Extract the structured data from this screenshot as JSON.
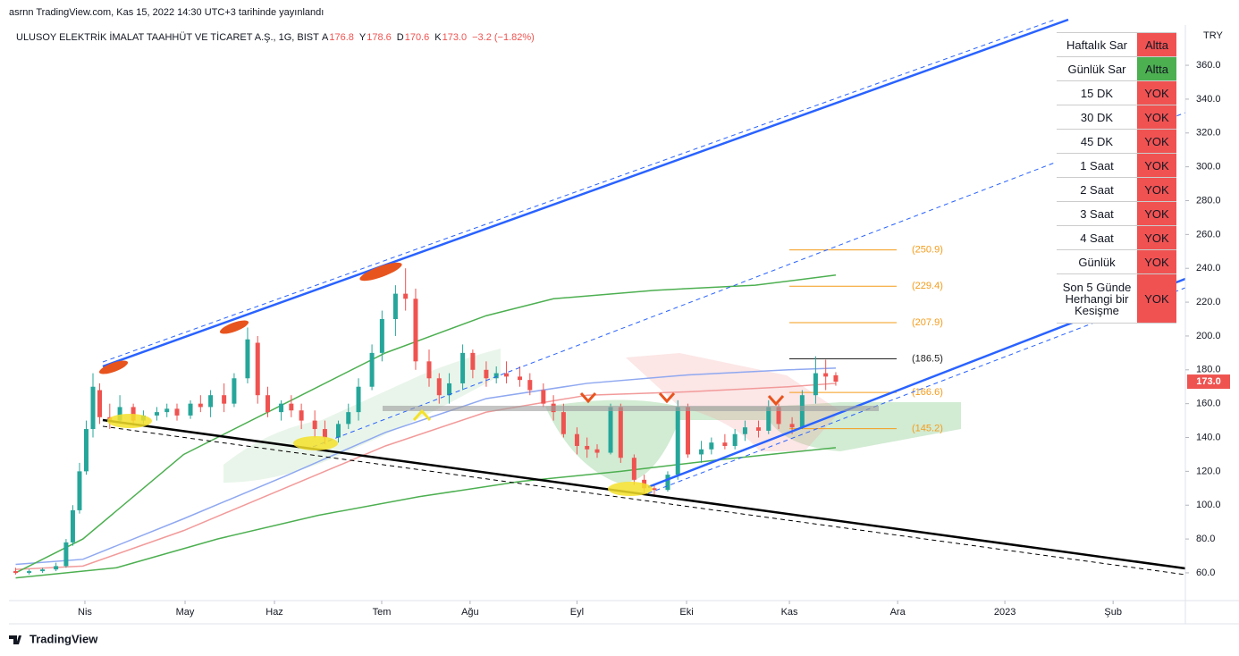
{
  "header": {
    "publisher": "asrnn TradingView.com, Kas 15, 2022 14:30 UTC+3 tarihinde yayınlandı"
  },
  "chart_data": {
    "type": "candlestick",
    "title": "ULUSOY ELEKTRİK İMALAT TAAHHÜT VE TİCARET A.Ş., 1G, BIST",
    "ohlc_legend": [
      {
        "key": "A",
        "text": "176.8"
      },
      {
        "key": "Y",
        "text": "178.6"
      },
      {
        "key": "D",
        "text": "170.6"
      },
      {
        "key": "K",
        "text": "173.0"
      },
      {
        "key": "",
        "text": "−3.2 (−1.82%)"
      }
    ],
    "currency": "TRY",
    "up_color": "#26a69a",
    "down_color": "#ef5350",
    "xlim": [
      8,
      358
    ],
    "xticks": [
      {
        "value": 30.6,
        "label": "Nis"
      },
      {
        "value": 60.4,
        "label": "May"
      },
      {
        "value": 87,
        "label": "Haz"
      },
      {
        "value": 118.9,
        "label": "Tem"
      },
      {
        "value": 145.2,
        "label": "Ağu"
      },
      {
        "value": 177,
        "label": "Eyl"
      },
      {
        "value": 209.6,
        "label": "Eki"
      },
      {
        "value": 240.2,
        "label": "Kas"
      },
      {
        "value": 272.4,
        "label": "Ara"
      },
      {
        "value": 304.3,
        "label": "2023"
      },
      {
        "value": 336.5,
        "label": "Şub"
      }
    ],
    "ylim": [
      43.6,
      383.8
    ],
    "yticks": [
      {
        "value": 60,
        "label": "60.0"
      },
      {
        "value": 80,
        "label": "80.0"
      },
      {
        "value": 100,
        "label": "100.0"
      },
      {
        "value": 120,
        "label": "120.0"
      },
      {
        "value": 140,
        "label": "140.0"
      },
      {
        "value": 160,
        "label": "160.0"
      },
      {
        "value": 180,
        "label": "180.0"
      },
      {
        "value": 200,
        "label": "200.0"
      },
      {
        "value": 220,
        "label": "220.0"
      },
      {
        "value": 240,
        "label": "240.0"
      },
      {
        "value": 260,
        "label": "260.0"
      },
      {
        "value": 280,
        "label": "280.0"
      },
      {
        "value": 300,
        "label": "300.0"
      },
      {
        "value": 320,
        "label": "320.0"
      },
      {
        "value": 340,
        "label": "340.0"
      },
      {
        "value": 360,
        "label": "360.0"
      }
    ],
    "last_price": {
      "value": 173,
      "label": "173.0"
    },
    "x": [
      10,
      14,
      18,
      22,
      25,
      27,
      29,
      31,
      33,
      35,
      38,
      41,
      45,
      48,
      52,
      55,
      58,
      62,
      65,
      68,
      72,
      75,
      79,
      82,
      85,
      89,
      92,
      95,
      99,
      102,
      106,
      109,
      112,
      116,
      119,
      123,
      126,
      129,
      133,
      136,
      139,
      143,
      146,
      150,
      153,
      156,
      160,
      163,
      167,
      170,
      173,
      177,
      180,
      183,
      187,
      190,
      194,
      197,
      200,
      204,
      207,
      210,
      214,
      217,
      221,
      224,
      227,
      231,
      234,
      237,
      241,
      244,
      248,
      251,
      254
    ],
    "open": [
      61,
      60,
      61,
      62,
      64,
      78,
      97,
      120,
      145,
      168,
      152,
      150,
      158,
      150,
      153,
      155,
      157,
      153,
      160,
      158,
      165,
      160,
      175,
      196,
      165,
      155,
      160,
      156,
      150,
      145,
      140,
      148,
      155,
      170,
      190,
      210,
      225,
      222,
      185,
      175,
      165,
      172,
      190,
      180,
      175,
      178,
      176,
      174,
      168,
      160,
      155,
      142,
      135,
      133,
      131,
      158,
      128,
      115,
      110,
      109,
      118,
      158,
      130,
      133,
      137,
      135,
      142,
      146,
      144,
      158,
      148,
      146,
      165,
      178,
      176.8
    ],
    "high": [
      63,
      62,
      63,
      66,
      80,
      100,
      125,
      150,
      178,
      172,
      160,
      165,
      160,
      156,
      158,
      160,
      160,
      162,
      165,
      168,
      172,
      178,
      205,
      200,
      170,
      162,
      165,
      160,
      156,
      150,
      150,
      160,
      175,
      195,
      215,
      230,
      240,
      228,
      192,
      178,
      178,
      195,
      192,
      185,
      182,
      185,
      182,
      178,
      172,
      165,
      160,
      146,
      140,
      136,
      160,
      160,
      130,
      118,
      112,
      120,
      162,
      160,
      138,
      140,
      142,
      145,
      150,
      150,
      162,
      160,
      152,
      168,
      188,
      186,
      178.6
    ],
    "low": [
      59,
      59,
      60,
      61,
      63,
      76,
      95,
      118,
      140,
      148,
      145,
      148,
      147,
      148,
      150,
      152,
      150,
      151,
      155,
      152,
      155,
      158,
      172,
      160,
      152,
      150,
      152,
      145,
      140,
      136,
      137,
      145,
      150,
      168,
      185,
      200,
      215,
      180,
      170,
      160,
      160,
      168,
      175,
      170,
      172,
      172,
      170,
      165,
      158,
      150,
      140,
      130,
      128,
      128,
      130,
      125,
      112,
      106,
      106,
      108,
      115,
      128,
      125,
      130,
      133,
      133,
      138,
      140,
      142,
      145,
      142,
      145,
      160,
      168,
      170.6
    ],
    "close": [
      60,
      61,
      62,
      64,
      78,
      97,
      120,
      145,
      170,
      152,
      150,
      158,
      150,
      153,
      155,
      157,
      153,
      160,
      158,
      165,
      160,
      175,
      198,
      165,
      155,
      160,
      156,
      150,
      145,
      140,
      148,
      155,
      170,
      190,
      210,
      225,
      222,
      185,
      175,
      165,
      172,
      190,
      180,
      175,
      178,
      176,
      174,
      168,
      160,
      155,
      142,
      135,
      133,
      131,
      158,
      128,
      115,
      110,
      109,
      118,
      158,
      130,
      133,
      137,
      135,
      142,
      146,
      144,
      158,
      148,
      146,
      165,
      178,
      176,
      173
    ],
    "overlays": [
      {
        "color": "#8fa8f0",
        "x": [
          10,
          30,
          60,
          90,
          120,
          150,
          180,
          210,
          240,
          254
        ],
        "values": [
          65,
          68,
          92,
          117,
          143,
          163,
          172,
          177,
          180,
          181
        ]
      },
      {
        "color": "#f29a9a",
        "x": [
          10,
          30,
          60,
          90,
          120,
          150,
          180,
          210,
          240,
          254
        ],
        "values": [
          62,
          64,
          85,
          110,
          135,
          155,
          165,
          167,
          170,
          172
        ]
      },
      {
        "color": "#4caf50",
        "x": [
          10,
          40,
          70,
          100,
          130,
          160,
          190,
          220,
          254
        ],
        "values": [
          57,
          63,
          80,
          94,
          105,
          114,
          120,
          127,
          134
        ]
      },
      {
        "color": "#4caf50",
        "x": [
          10,
          30,
          60,
          90,
          120,
          150,
          170,
          200,
          230,
          254
        ],
        "values": [
          60,
          80,
          130,
          160,
          190,
          212,
          222,
          227,
          230,
          236
        ]
      }
    ],
    "levels": {
      "values": [
        250.9,
        229.4,
        207.9,
        186.5,
        166.6,
        145.2
      ],
      "value_labels": [
        "(250.9)",
        "(229.4)",
        "(207.9)",
        "(186.5)",
        "(166.6)",
        "(145.2)"
      ],
      "colors": [
        "#f59c1a",
        "#f59c1a",
        "#f59c1a",
        "#222222",
        "#f59c1a",
        "#f59c1a"
      ]
    }
  },
  "table": {
    "rows": [
      [
        "Haftalık Sar",
        "Altta"
      ],
      [
        "Günlük Sar",
        "Altta"
      ],
      [
        "15 DK",
        "YOK"
      ],
      [
        "30 DK",
        "YOK"
      ],
      [
        "45 DK",
        "YOK"
      ],
      [
        "1 Saat",
        "YOK"
      ],
      [
        "2 Saat",
        "YOK"
      ],
      [
        "3 Saat",
        "YOK"
      ],
      [
        "4 Saat",
        "YOK"
      ],
      [
        "Günlük",
        "YOK"
      ],
      [
        "Son 5 Günde Herhangi bir Kesişme",
        "YOK"
      ]
    ],
    "status_colors": [
      "#f05252",
      "#4caf50",
      "#f05252",
      "#f05252",
      "#f05252",
      "#f05252",
      "#f05252",
      "#f05252",
      "#f05252",
      "#f05252",
      "#f05252"
    ]
  },
  "footer": {
    "brand": "TradingView"
  }
}
